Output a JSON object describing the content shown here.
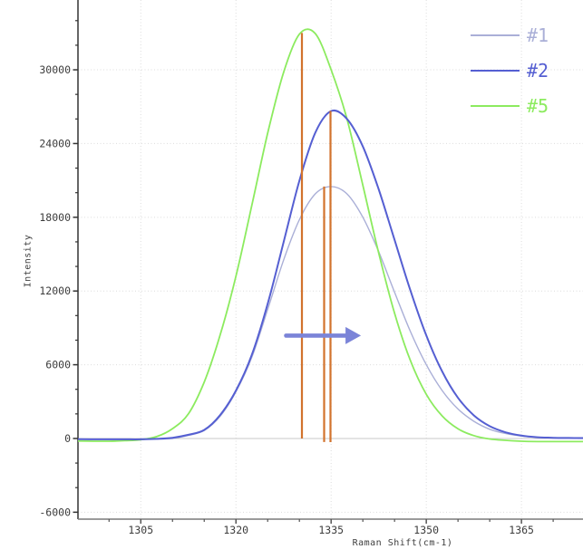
{
  "chart_data": {
    "type": "line",
    "title": "",
    "xlabel": "Raman Shift(cm-1)",
    "ylabel": "Intensity",
    "xlim": [
      1295.1,
      1374.7
    ],
    "ylim": [
      -6490,
      35680
    ],
    "x_ticks": [
      1305,
      1320,
      1335,
      1350,
      1365
    ],
    "x_minor_step": 5,
    "y_ticks": [
      -6000,
      0,
      6000,
      12000,
      18000,
      24000,
      30000
    ],
    "y_minor_step": 2000,
    "grid": {
      "show": true,
      "style": "dotted",
      "color": "#dcdcdc",
      "zero_line_color": "#c9c9c9"
    },
    "axis_color_y": "#333333",
    "axis_color_x": "#7a7a7a",
    "tick_label_color": "#3c3c3c",
    "legend": {
      "position": "top-right",
      "entries": [
        "#1",
        "#2",
        "#5"
      ]
    },
    "x": [
      1295,
      1297.5,
      1300,
      1302.5,
      1305,
      1307.5,
      1310,
      1312.5,
      1315,
      1317.5,
      1320,
      1322.5,
      1325,
      1327.5,
      1330,
      1332.5,
      1335,
      1337.5,
      1340,
      1342.5,
      1345,
      1347.5,
      1350,
      1352.5,
      1355,
      1357.5,
      1360,
      1362.5,
      1365,
      1367.5,
      1370,
      1372.5,
      1375
    ],
    "series": [
      {
        "name": "#1",
        "color": "#aaafd7",
        "line_width": 1.4,
        "values": [
          -60,
          -60,
          -70,
          -70,
          -80,
          -40,
          0,
          250,
          650,
          1800,
          3800,
          6600,
          10500,
          14500,
          17800,
          19900,
          20500,
          19900,
          18000,
          15200,
          11900,
          8700,
          6000,
          3900,
          2400,
          1400,
          750,
          400,
          200,
          100,
          50,
          20,
          0
        ]
      },
      {
        "name": "#2",
        "color": "#555fd2",
        "line_width": 2,
        "values": [
          -60,
          -65,
          -70,
          -70,
          -70,
          -30,
          60,
          300,
          700,
          1900,
          3900,
          6800,
          10950,
          15950,
          20970,
          24870,
          26640,
          26000,
          23760,
          20270,
          16160,
          12040,
          8380,
          5450,
          3310,
          1880,
          1000,
          500,
          230,
          100,
          60,
          40,
          30
        ]
      },
      {
        "name": "#5",
        "color": "#8ceb5f",
        "line_width": 1.8,
        "values": [
          -200,
          -220,
          -220,
          -180,
          -100,
          150,
          800,
          2000,
          4600,
          8400,
          13200,
          18960,
          24840,
          29770,
          32900,
          32950,
          30000,
          26000,
          20600,
          15090,
          10190,
          6330,
          3590,
          1830,
          790,
          230,
          -40,
          -150,
          -220,
          -250,
          -250,
          -250,
          -250
        ]
      }
    ],
    "annotations": {
      "peak_markers": [
        {
          "x": 1330.4,
          "y_from": 0,
          "y_to": 33000,
          "color": "#d2732d",
          "marks": "peak of #5"
        },
        {
          "x": 1333.9,
          "y_from": -290,
          "y_to": 20500,
          "color": "#d2732d",
          "marks": "peak of #1"
        },
        {
          "x": 1334.9,
          "y_from": -300,
          "y_to": 26650,
          "color": "#d2732d",
          "marks": "peak of #2"
        }
      ],
      "shift_arrow": {
        "x_from": 1327.9,
        "x_to": 1339.7,
        "y": 8370,
        "color": "#7b84d8",
        "direction": "right"
      }
    }
  }
}
